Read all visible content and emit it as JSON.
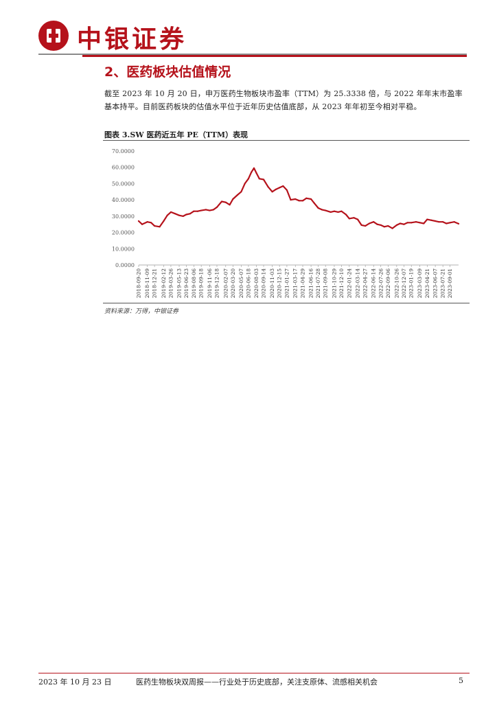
{
  "header": {
    "brand": "中银证券"
  },
  "section": {
    "title": "2、医药板块估值情况",
    "paragraph": "截至 2023 年 10 月 20 日，申万医药生物板块市盈率（TTM）为 25.3338 倍，与 2022 年年末市盈率基本持平。目前医药板块的估值水平位于近年历史估值底部，从 2023 年年初至今相对平稳。"
  },
  "figure": {
    "title": "图表 3.SW 医药近五年 PE（TTM）表现",
    "source": "资料来源：万得，中银证券"
  },
  "chart_data": {
    "type": "line",
    "title": "",
    "xlabel": "",
    "ylabel": "",
    "ylim": [
      0,
      70
    ],
    "y_ticks": [
      "0.0000",
      "10.0000",
      "20.0000",
      "30.0000",
      "40.0000",
      "50.0000",
      "60.0000",
      "70.0000"
    ],
    "x_ticks": [
      "2018-09-20",
      "2018-11-09",
      "2018-12-21",
      "2019-02-12",
      "2019-03-26",
      "2019-05-13",
      "2019-06-23",
      "2019-08-06",
      "2019-09-18",
      "2019-11-06",
      "2019-12-18",
      "2020-02-07",
      "2020-03-20",
      "2020-05-07",
      "2020-06-18",
      "2020-08-03",
      "2020-09-14",
      "2020-11-03",
      "2020-12-15",
      "2021-01-27",
      "2021-03-17",
      "2021-04-29",
      "2021-06-16",
      "2021-07-28",
      "2021-09-08",
      "2021-10-29",
      "2021-12-10",
      "2022-01-24",
      "2022-03-14",
      "2022-04-27",
      "2022-06-14",
      "2022-07-26",
      "2022-09-06",
      "2022-10-26",
      "2022-12-07",
      "2023-01-19",
      "2023-03-09",
      "2023-04-21",
      "2023-06-07",
      "2023-07-21",
      "2023-09-01"
    ],
    "series": [
      {
        "color": "#b5121b",
        "x": [
          "2018-09-20",
          "2018-10-10",
          "2018-11-09",
          "2018-12-01",
          "2018-12-21",
          "2019-01-20",
          "2019-02-12",
          "2019-03-05",
          "2019-03-26",
          "2019-04-20",
          "2019-05-13",
          "2019-06-05",
          "2019-06-23",
          "2019-07-15",
          "2019-08-06",
          "2019-08-28",
          "2019-09-18",
          "2019-10-15",
          "2019-11-06",
          "2019-11-28",
          "2019-12-18",
          "2020-01-15",
          "2020-02-07",
          "2020-03-01",
          "2020-03-20",
          "2020-04-15",
          "2020-05-07",
          "2020-05-28",
          "2020-06-18",
          "2020-07-05",
          "2020-07-20",
          "2020-08-03",
          "2020-08-20",
          "2020-09-14",
          "2020-10-10",
          "2020-11-03",
          "2020-11-25",
          "2020-12-15",
          "2021-01-05",
          "2021-01-27",
          "2021-02-18",
          "2021-03-17",
          "2021-04-08",
          "2021-04-29",
          "2021-05-20",
          "2021-06-16",
          "2021-07-05",
          "2021-07-28",
          "2021-08-18",
          "2021-09-08",
          "2021-10-08",
          "2021-10-29",
          "2021-11-20",
          "2021-12-10",
          "2022-01-05",
          "2022-01-24",
          "2022-02-20",
          "2022-03-14",
          "2022-04-05",
          "2022-04-27",
          "2022-05-20",
          "2022-06-14",
          "2022-07-05",
          "2022-07-26",
          "2022-08-15",
          "2022-09-06",
          "2022-10-01",
          "2022-10-26",
          "2022-11-15",
          "2022-12-07",
          "2022-12-28",
          "2023-01-19",
          "2023-02-15",
          "2023-03-09",
          "2023-04-01",
          "2023-04-21",
          "2023-05-15",
          "2023-06-07",
          "2023-06-28",
          "2023-07-21",
          "2023-08-10",
          "2023-09-01",
          "2023-09-25",
          "2023-10-20"
        ],
        "y": [
          27.0,
          25.0,
          26.5,
          26.0,
          24.0,
          23.5,
          27.0,
          30.5,
          32.5,
          31.5,
          30.5,
          30.0,
          31.0,
          31.5,
          33.0,
          33.0,
          33.5,
          34.0,
          33.5,
          34.0,
          35.5,
          39.0,
          38.5,
          37.0,
          40.5,
          43.0,
          45.0,
          50.0,
          53.0,
          57.0,
          59.5,
          56.5,
          53.0,
          52.5,
          48.0,
          45.0,
          46.5,
          47.5,
          48.5,
          46.0,
          40.0,
          40.5,
          39.5,
          39.5,
          41.0,
          40.5,
          38.0,
          35.0,
          34.0,
          33.5,
          32.5,
          33.0,
          32.5,
          33.0,
          31.0,
          28.5,
          29.0,
          28.0,
          24.5,
          24.0,
          25.5,
          26.5,
          25.0,
          24.5,
          23.5,
          24.0,
          22.5,
          24.5,
          25.5,
          25.0,
          26.0,
          26.0,
          26.5,
          26.0,
          25.5,
          28.0,
          27.5,
          27.0,
          26.5,
          26.5,
          25.5,
          26.0,
          26.5,
          25.3338
        ]
      }
    ]
  },
  "footer": {
    "date": "2023 年 10 月 23 日",
    "title": "医药生物板块双周报——行业处于历史底部，关注支原体、流感相关机会",
    "page": "5"
  }
}
